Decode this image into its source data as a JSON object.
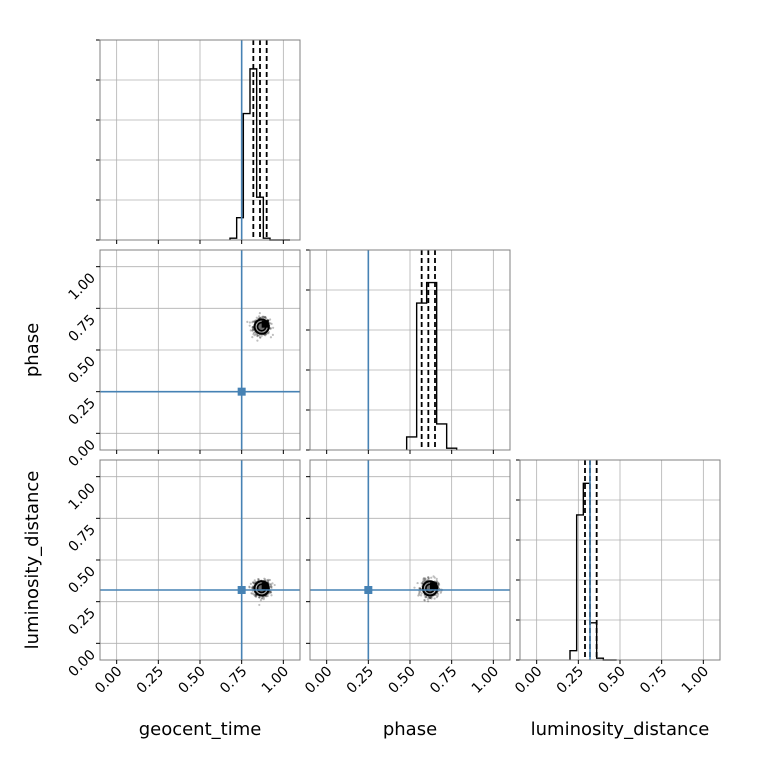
{
  "chart_data": {
    "type": "corner",
    "parameters": [
      "geocent_time",
      "phase",
      "luminosity_distance"
    ],
    "axis_labels": {
      "x": [
        "geocent_time",
        "phase",
        "luminosity_distance"
      ],
      "y": [
        "",
        "phase",
        "luminosity_distance"
      ]
    },
    "ticks": [
      0.0,
      0.25,
      0.5,
      0.75,
      1.0
    ],
    "tick_labels": [
      "0.00",
      "0.25",
      "0.50",
      "0.75",
      "1.00"
    ],
    "range": [
      -0.1,
      1.1
    ],
    "grid": true,
    "truth_color": "#4682b4",
    "truths": {
      "geocent_time": 0.75,
      "phase": 0.25,
      "luminosity_distance": 0.32
    },
    "histograms": {
      "geocent_time": {
        "bin_edges": [
          0.68,
          0.72,
          0.76,
          0.8,
          0.84,
          0.88,
          0.92,
          0.96,
          1.0,
          1.04
        ],
        "counts": [
          0.01,
          0.12,
          0.68,
          0.92,
          0.23,
          0.01,
          0.0,
          0.0,
          0.0
        ],
        "ylim": [
          0,
          1.0
        ],
        "quantiles": [
          0.82,
          0.86,
          0.9
        ]
      },
      "phase": {
        "bin_edges": [
          0.48,
          0.54,
          0.6,
          0.66,
          0.72,
          0.78
        ],
        "counts": [
          0.07,
          0.79,
          0.9,
          0.14,
          0.01
        ],
        "ylim": [
          0,
          1.0
        ],
        "quantiles": [
          0.57,
          0.61,
          0.65
        ]
      },
      "luminosity_distance": {
        "bin_edges": [
          0.2,
          0.24,
          0.28,
          0.32,
          0.36,
          0.4,
          0.44,
          0.48
        ],
        "counts": [
          0.05,
          0.78,
          0.95,
          0.2,
          0.01,
          0.0,
          0.0
        ],
        "ylim": [
          0,
          1.0
        ],
        "quantiles": [
          0.29,
          0.32,
          0.36
        ]
      }
    },
    "scatter_2d": [
      {
        "x_param": "geocent_time",
        "y_param": "phase",
        "center": [
          0.87,
          0.64
        ],
        "spread": [
          0.045,
          0.045
        ]
      },
      {
        "x_param": "geocent_time",
        "y_param": "luminosity_distance",
        "center": [
          0.87,
          0.33
        ],
        "spread": [
          0.045,
          0.045
        ]
      },
      {
        "x_param": "phase",
        "y_param": "luminosity_distance",
        "center": [
          0.62,
          0.33
        ],
        "spread": [
          0.045,
          0.045
        ]
      }
    ]
  }
}
